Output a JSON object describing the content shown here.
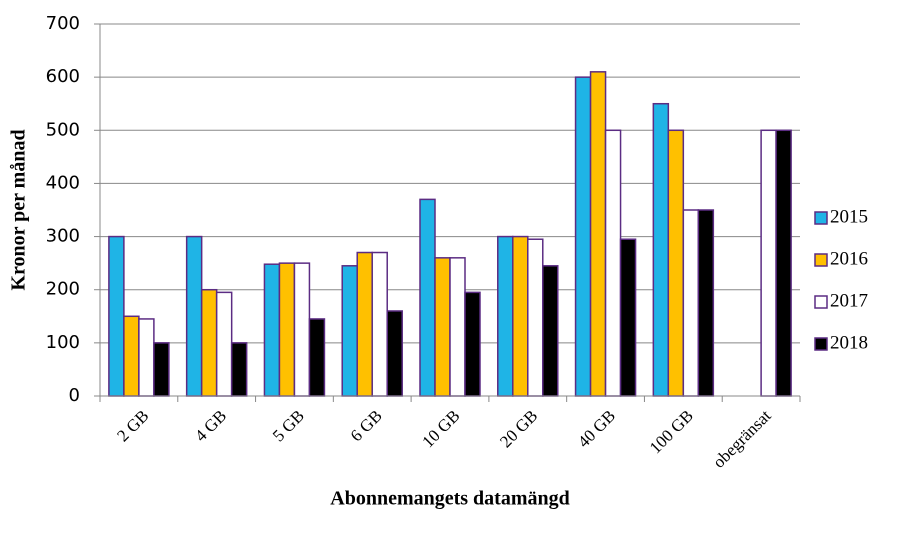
{
  "chart_data": {
    "type": "bar",
    "y_label": "Kronor per månad",
    "x_label": "Abonnemangets datamängd",
    "categories": [
      "2 GB",
      "4 GB",
      "5 GB",
      "6 GB",
      "10 GB",
      "20 GB",
      "40 GB",
      "100 GB",
      "obegränsat"
    ],
    "series": [
      {
        "name": "2015",
        "color": "#1fb4e6",
        "values": [
          300,
          300,
          248,
          245,
          370,
          300,
          600,
          550,
          null
        ]
      },
      {
        "name": "2016",
        "color": "#ffc000",
        "values": [
          150,
          200,
          250,
          270,
          260,
          300,
          610,
          500,
          null
        ]
      },
      {
        "name": "2017",
        "color": "#ffffff",
        "values": [
          145,
          195,
          250,
          270,
          260,
          295,
          500,
          350,
          500
        ]
      },
      {
        "name": "2018",
        "color": "#000000",
        "values": [
          100,
          100,
          145,
          160,
          195,
          245,
          295,
          350,
          500
        ]
      }
    ],
    "edge_color": "#5b2c83",
    "ylim": [
      0,
      700
    ],
    "yticks": [
      0,
      100,
      200,
      300,
      400,
      500,
      600,
      700
    ],
    "grid": true,
    "legend": "right"
  }
}
